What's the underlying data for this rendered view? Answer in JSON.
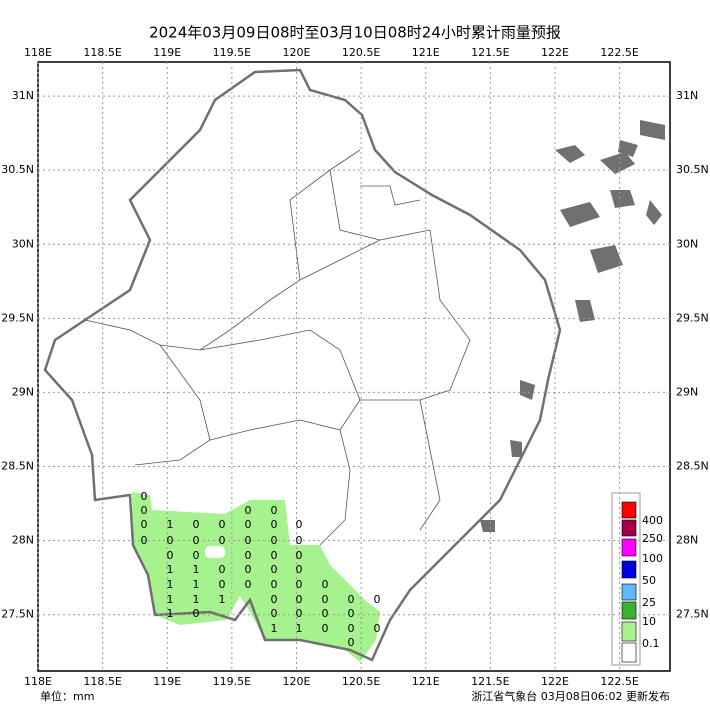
{
  "title": "2024年03月09日08时至03月10日08时24小时累计雨量预报",
  "map": {
    "xlim": [
      118,
      122.89
    ],
    "ylim": [
      27.12,
      31.23
    ],
    "xticks": [
      {
        "value": 118,
        "label": "118E"
      },
      {
        "value": 118.5,
        "label": "118.5E"
      },
      {
        "value": 119,
        "label": "119E"
      },
      {
        "value": 119.5,
        "label": "119.5E"
      },
      {
        "value": 120,
        "label": "120E"
      },
      {
        "value": 120.5,
        "label": "120.5E"
      },
      {
        "value": 121,
        "label": "121E"
      },
      {
        "value": 121.5,
        "label": "121.5E"
      },
      {
        "value": 122,
        "label": "122E"
      },
      {
        "value": 122.5,
        "label": "122.5E"
      }
    ],
    "yticks": [
      {
        "value": 31,
        "label": "31N"
      },
      {
        "value": 30.5,
        "label": "30.5N"
      },
      {
        "value": 30,
        "label": "30N"
      },
      {
        "value": 29.5,
        "label": "29.5N"
      },
      {
        "value": 29,
        "label": "29N"
      },
      {
        "value": 28.5,
        "label": "28.5N"
      },
      {
        "value": 28,
        "label": "28N"
      },
      {
        "value": 27.5,
        "label": "27.5N"
      }
    ],
    "grid": true,
    "stations": [
      0,
      0,
      0,
      0,
      1,
      0,
      0,
      1,
      1,
      1,
      1,
      0,
      0,
      0,
      1,
      1,
      1,
      0,
      0,
      0,
      0,
      0,
      1,
      0,
      0,
      0,
      0,
      0,
      0,
      0,
      0,
      0,
      0,
      0,
      0,
      0,
      0,
      1,
      0,
      0,
      0,
      0,
      0,
      0,
      0,
      1,
      0,
      0,
      0,
      0,
      0,
      0,
      0,
      0,
      0,
      0
    ]
  },
  "legend": {
    "labels": [
      "400",
      "250",
      "100",
      "50",
      "25",
      "10",
      "0.1"
    ],
    "colors": [
      "#ff0000",
      "#a0004a",
      "#ff00ff",
      "#0000e0",
      "#60b8ff",
      "#3cb030",
      "#a6f28e",
      "#ffffff"
    ]
  },
  "footer": {
    "unit": "单位：mm",
    "source": "浙江省气象台 03月08日06:02 更新发布"
  }
}
